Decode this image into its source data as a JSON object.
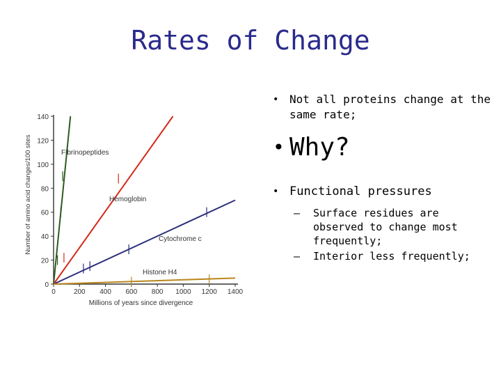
{
  "slide": {
    "title": "Rates of Change",
    "bullets": [
      {
        "text": "Not all proteins change at the same rate;"
      },
      {
        "text": "Why?"
      },
      {
        "text": "Functional pressures"
      }
    ],
    "subbullets": [
      "Surface residues are observed to change most frequently;",
      "Interior less frequently;"
    ],
    "bullet_symbol": "•",
    "dash_symbol": "–"
  },
  "colors": {
    "title": "#2a2a8c",
    "fibrinopeptides": "#2f5a1f",
    "hemoglobin": "#d42a1a",
    "cytochrome": "#2b2d7a",
    "histone": "#b8861c"
  },
  "chart_data": {
    "type": "line",
    "xlabel": "Millions of years since divergence",
    "ylabel": "Number of amino acid changes/100 sites",
    "xlim": [
      0,
      1400
    ],
    "ylim": [
      0,
      140
    ],
    "xticks": [
      0,
      200,
      400,
      600,
      800,
      1000,
      1200,
      1400
    ],
    "yticks": [
      0,
      20,
      40,
      60,
      80,
      100,
      120,
      140
    ],
    "grid": false,
    "series": [
      {
        "name": "Fibrinopeptides",
        "x": [
          0,
          130
        ],
        "y": [
          0,
          140
        ],
        "color": "#2f5a1f",
        "markers": [
          {
            "x": 30,
            "y": 20
          },
          {
            "x": 55,
            "y": 60
          },
          {
            "x": 70,
            "y": 90
          }
        ]
      },
      {
        "name": "Hemoglobin",
        "x": [
          0,
          920
        ],
        "y": [
          0,
          140
        ],
        "color": "#d42a1a",
        "markers": [
          {
            "x": 80,
            "y": 22
          },
          {
            "x": 500,
            "y": 88
          }
        ]
      },
      {
        "name": "Cytochrome c",
        "x": [
          0,
          1400
        ],
        "y": [
          0,
          70
        ],
        "color": "#2b2d7a",
        "markers": [
          {
            "x": 230,
            "y": 13
          },
          {
            "x": 280,
            "y": 15
          },
          {
            "x": 580,
            "y": 29
          },
          {
            "x": 1180,
            "y": 60
          }
        ]
      },
      {
        "name": "Histone H4",
        "x": [
          0,
          1400
        ],
        "y": [
          0,
          5
        ],
        "color": "#b8861c",
        "markers": [
          {
            "x": 600,
            "y": 2
          },
          {
            "x": 1200,
            "y": 4
          }
        ]
      }
    ]
  }
}
